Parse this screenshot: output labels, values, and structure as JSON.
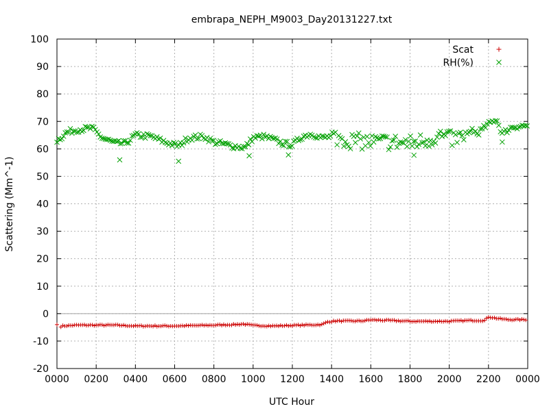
{
  "chart_data": {
    "type": "scatter",
    "title": "embrapa_NEPH_M9003_Day20131227.txt",
    "xlabel": "UTC Hour",
    "ylabel": "Scattering (Mm^-1)",
    "ylim": [
      -20,
      100
    ],
    "xlim": [
      0,
      24
    ],
    "y_ticks": [
      "-20",
      "-10",
      "0",
      "10",
      "20",
      "30",
      "40",
      "50",
      "60",
      "70",
      "80",
      "90",
      "100"
    ],
    "x_ticks": [
      "0000",
      "0200",
      "0400",
      "0600",
      "0800",
      "1000",
      "1200",
      "1400",
      "1600",
      "1800",
      "2000",
      "2200",
      "0000"
    ],
    "grid": true,
    "legend_position": "top-right",
    "series": [
      {
        "name": "Scat",
        "marker": "+",
        "color": "#cc0000",
        "keypoints": [
          [
            0.0,
            -5.0
          ],
          [
            0.3,
            -4.5
          ],
          [
            1.0,
            -4.2
          ],
          [
            3.0,
            -4.2
          ],
          [
            4.0,
            -4.5
          ],
          [
            6.0,
            -4.5
          ],
          [
            8.0,
            -4.2
          ],
          [
            9.0,
            -4.0
          ],
          [
            9.5,
            -3.8
          ],
          [
            10.0,
            -4.3
          ],
          [
            11.0,
            -4.5
          ],
          [
            12.5,
            -4.2
          ],
          [
            13.5,
            -4.0
          ],
          [
            13.8,
            -3.0
          ],
          [
            14.2,
            -2.7
          ],
          [
            15.5,
            -2.7
          ],
          [
            16.0,
            -2.3
          ],
          [
            17.0,
            -2.5
          ],
          [
            18.0,
            -2.8
          ],
          [
            19.0,
            -2.8
          ],
          [
            20.0,
            -2.8
          ],
          [
            21.0,
            -2.5
          ],
          [
            21.8,
            -2.5
          ],
          [
            22.0,
            -1.2
          ],
          [
            22.5,
            -1.8
          ],
          [
            23.0,
            -2.2
          ],
          [
            24.0,
            -2.2
          ]
        ]
      },
      {
        "name": "RH(%)",
        "marker": "x",
        "color": "#00a000",
        "keypoints": [
          [
            0.0,
            63.0
          ],
          [
            0.5,
            66.0
          ],
          [
            1.0,
            67.0
          ],
          [
            1.8,
            67.5
          ],
          [
            2.3,
            64.0
          ],
          [
            3.0,
            62.0
          ],
          [
            3.5,
            62.0
          ],
          [
            4.0,
            65.0
          ],
          [
            4.8,
            64.5
          ],
          [
            5.5,
            62.5
          ],
          [
            6.2,
            61.0
          ],
          [
            6.7,
            64.0
          ],
          [
            7.5,
            64.5
          ],
          [
            8.0,
            62.5
          ],
          [
            9.0,
            61.0
          ],
          [
            9.6,
            60.5
          ],
          [
            10.0,
            64.0
          ],
          [
            10.5,
            64.5
          ],
          [
            11.0,
            63.5
          ],
          [
            11.5,
            62.0
          ],
          [
            12.0,
            61.5
          ],
          [
            12.5,
            64.5
          ],
          [
            13.0,
            65.5
          ],
          [
            13.5,
            64.0
          ],
          [
            14.0,
            64.5
          ],
          [
            15.0,
            63.0
          ],
          [
            16.0,
            62.5
          ],
          [
            17.0,
            62.5
          ],
          [
            18.0,
            62.0
          ],
          [
            19.0,
            63.5
          ],
          [
            19.5,
            65.0
          ],
          [
            20.0,
            63.5
          ],
          [
            20.5,
            64.0
          ],
          [
            21.0,
            65.0
          ],
          [
            21.5,
            66.0
          ],
          [
            22.0,
            69.0
          ],
          [
            22.4,
            71.0
          ],
          [
            22.7,
            65.5
          ],
          [
            23.2,
            68.0
          ],
          [
            24.0,
            68.5
          ]
        ],
        "outliers": [
          [
            3.2,
            56.0
          ],
          [
            6.2,
            55.5
          ],
          [
            9.8,
            57.5
          ],
          [
            11.8,
            57.8
          ],
          [
            18.2,
            57.7
          ],
          [
            22.7,
            62.5
          ]
        ]
      }
    ]
  }
}
